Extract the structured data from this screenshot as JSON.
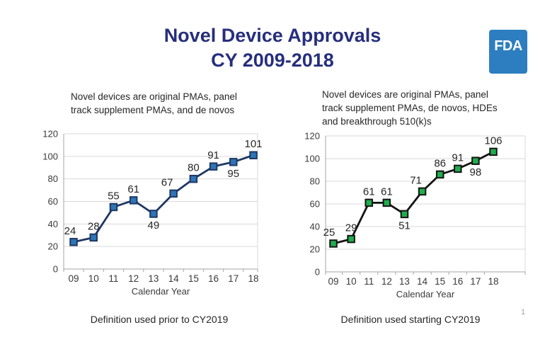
{
  "page": {
    "background": "#ffffff",
    "page_number": "1"
  },
  "header": {
    "title_line1": "Novel Device Approvals",
    "title_line2": "CY 2009-2018",
    "title_color": "#262e7d"
  },
  "fda_logo": {
    "text": "FDA",
    "bg_color": "#2d7ec0",
    "text_color": "#ffffff"
  },
  "chart_data": [
    {
      "type": "line",
      "title": "Novel devices are original PMAs, panel\ntrack supplement PMAs, and de novos",
      "caption": "Definition used prior to CY2019",
      "categories": [
        "09",
        "10",
        "11",
        "12",
        "13",
        "14",
        "15",
        "16",
        "17",
        "18"
      ],
      "values": [
        24,
        28,
        55,
        61,
        49,
        67,
        80,
        91,
        95,
        101
      ],
      "xlabel": "Calendar Year",
      "ylabel": "",
      "ylim": [
        0,
        120
      ],
      "ytick_interval": 20,
      "grid": true,
      "legend": "none",
      "line_color": "#1f3864",
      "marker_fill": "#2e75b6",
      "marker_stroke": "#1f3864",
      "labels_below": [
        4,
        8
      ],
      "label_dx": [
        -5,
        0,
        0,
        0,
        0,
        -9,
        0,
        0,
        0,
        0
      ]
    },
    {
      "type": "line",
      "title": "Novel devices are original PMAs, panel\ntrack supplement PMAs, de novos, HDEs\nand breakthrough 510(k)s",
      "caption": "Definition used starting CY2019",
      "categories": [
        "09",
        "10",
        "11",
        "12",
        "13",
        "14",
        "15",
        "16",
        "17",
        "18"
      ],
      "values": [
        25,
        29,
        61,
        61,
        51,
        71,
        86,
        91,
        98,
        106
      ],
      "xlabel": "Calendar Year",
      "ylabel": "",
      "ylim": [
        0,
        120
      ],
      "ytick_interval": 20,
      "grid": true,
      "legend": "none",
      "line_color": "#141414",
      "marker_fill": "#1fae4d",
      "marker_stroke": "#141414",
      "labels_below": [
        4,
        8
      ],
      "label_dx": [
        -6,
        0,
        0,
        0,
        0,
        -9,
        0,
        0,
        0,
        0
      ]
    }
  ],
  "style": {
    "grid_color": "#d9d9d9",
    "axis_color": "#a6a6a6",
    "tick_label_color": "#3a3a3a",
    "data_label_color": "#262626"
  }
}
